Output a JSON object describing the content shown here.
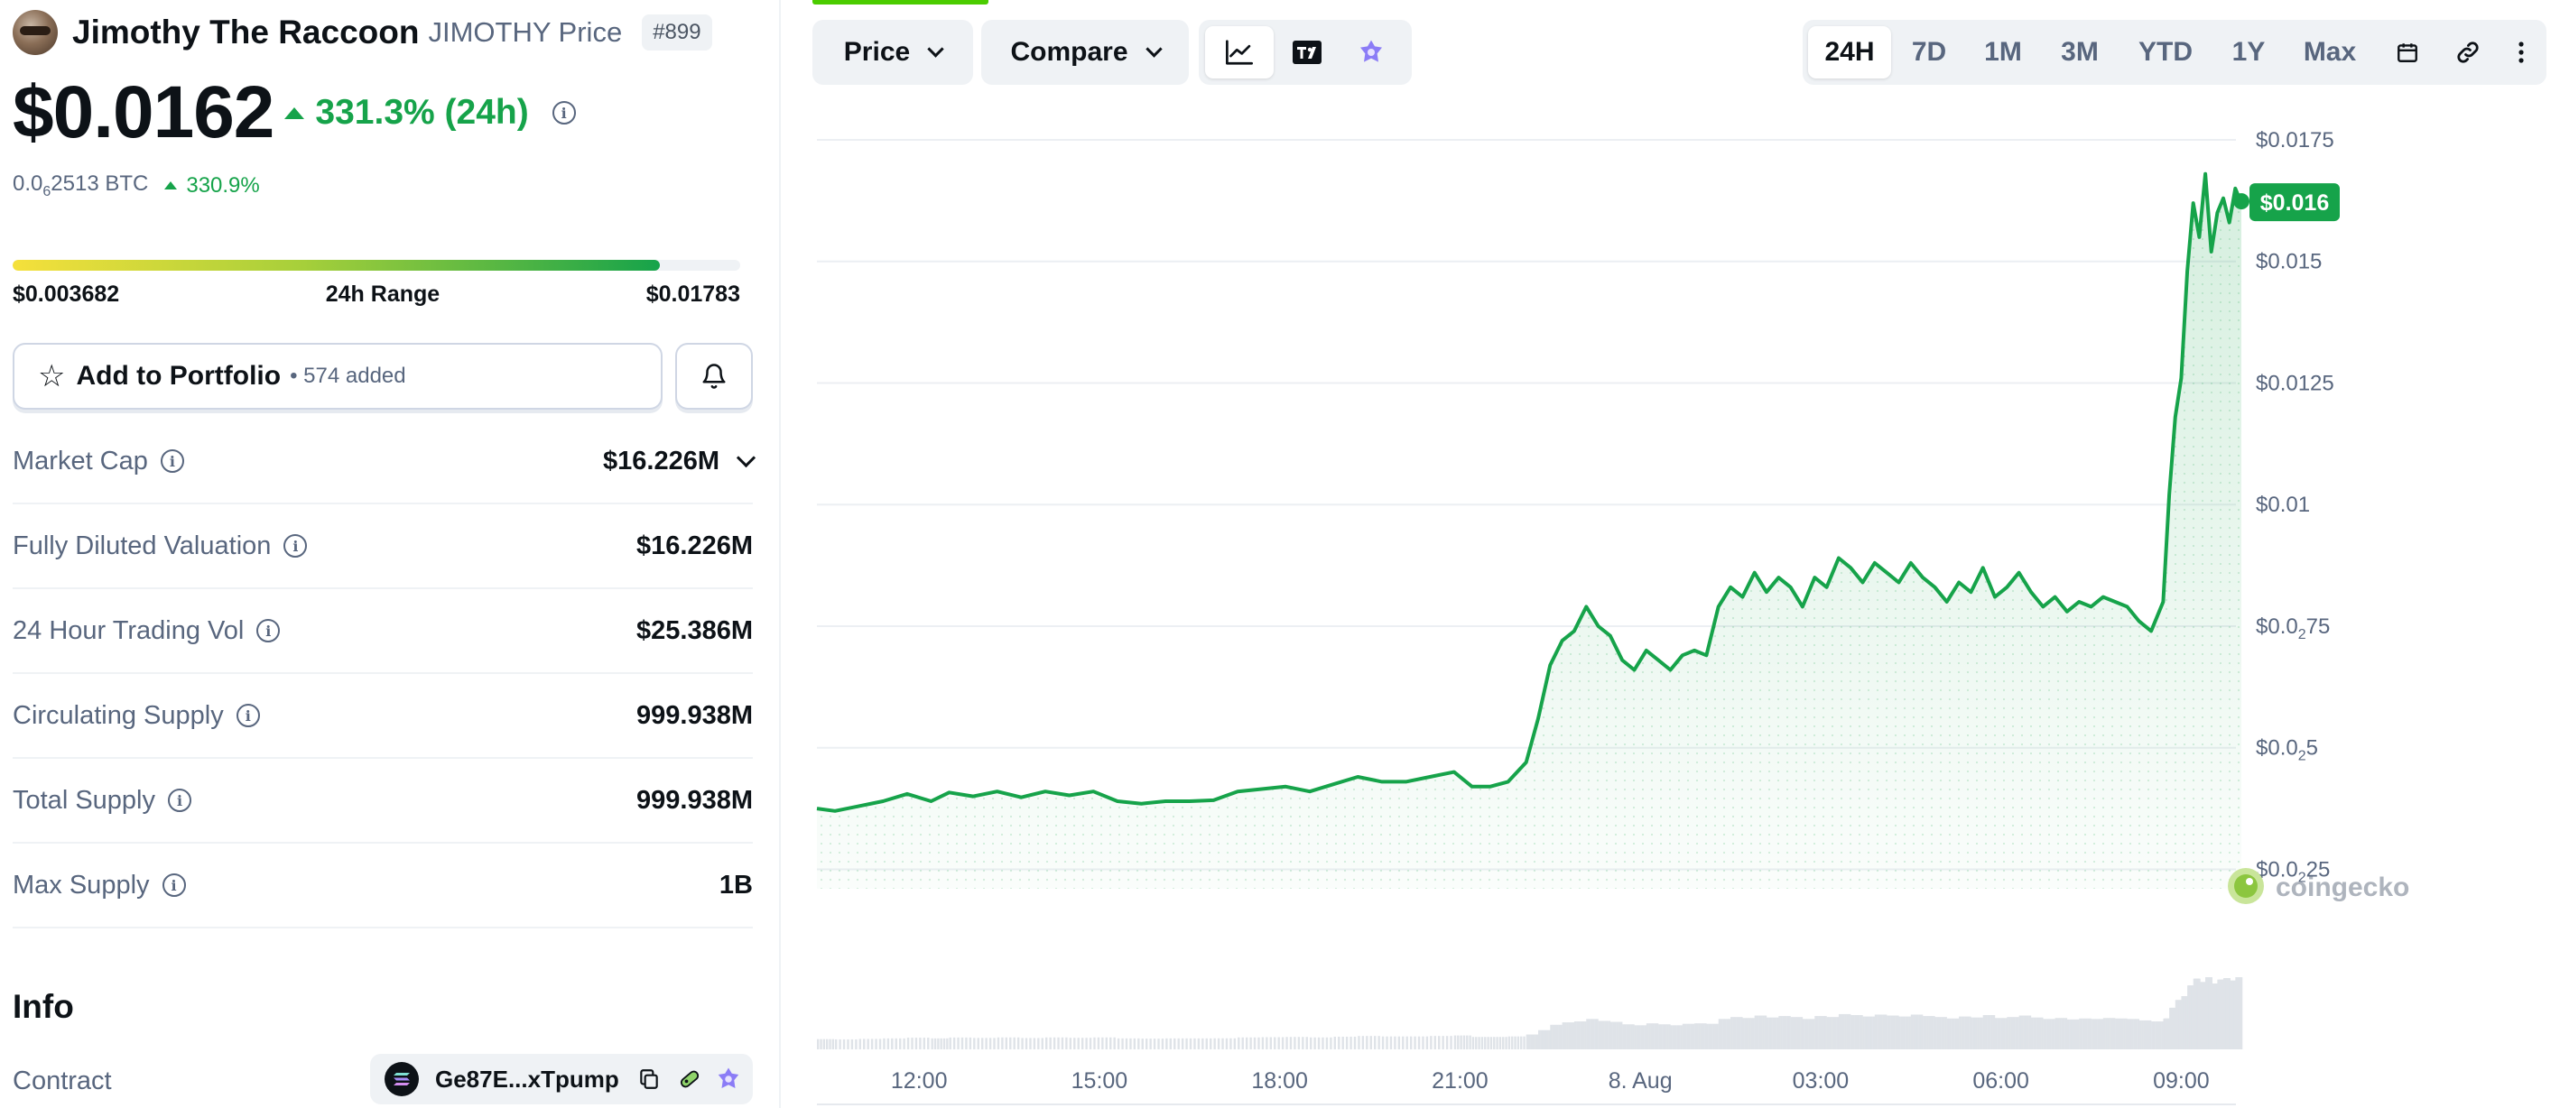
{
  "coin": {
    "name": "Jimothy The Raccoon",
    "symbol_label": "JIMOTHY Price",
    "rank": "#899",
    "price": "$0.0162",
    "change_24h": "331.3% (24h)",
    "btc_price_prefix": "0.0",
    "btc_price_sub": "6",
    "btc_price_suffix": "2513 BTC",
    "btc_change": "330.9%"
  },
  "range": {
    "low": "$0.003682",
    "label": "24h Range",
    "high": "$0.01783",
    "fill_fraction": 0.89
  },
  "portfolio": {
    "label": "Add to Portfolio",
    "count": "• 574 added"
  },
  "stats": [
    {
      "label": "Market Cap",
      "value": "$16.226M",
      "expandable": true
    },
    {
      "label": "Fully Diluted Valuation",
      "value": "$16.226M"
    },
    {
      "label": "24 Hour Trading Vol",
      "value": "$25.386M"
    },
    {
      "label": "Circulating Supply",
      "value": "999.938M"
    },
    {
      "label": "Total Supply",
      "value": "999.938M"
    },
    {
      "label": "Max Supply",
      "value": "1B"
    }
  ],
  "info": {
    "title": "Info",
    "contract_label": "Contract",
    "contract_address": "Ge87E...xTpump"
  },
  "toolbar": {
    "price_label": "Price",
    "compare_label": "Compare",
    "chart_types": [
      "line-chart-icon",
      "tradingview-icon",
      "ai-sparkle-icon"
    ],
    "ranges": [
      "24H",
      "7D",
      "1M",
      "3M",
      "YTD",
      "1Y",
      "Max"
    ],
    "active_range": "24H"
  },
  "colors": {
    "up": "#16a34a",
    "line": "#16a34a",
    "accent": "#4bcc00",
    "muted": "#58667e"
  },
  "chart_data": {
    "type": "line",
    "title": "",
    "xlabel": "",
    "ylabel": "",
    "ylim": [
      0.0021,
      0.0175
    ],
    "y_ticks": [
      {
        "value": 0.0025,
        "label_main": "$0.0",
        "label_sub": "2",
        "label_rest": "25"
      },
      {
        "value": 0.005,
        "label_main": "$0.0",
        "label_sub": "2",
        "label_rest": "5"
      },
      {
        "value": 0.0075,
        "label_main": "$0.0",
        "label_sub": "2",
        "label_rest": "75"
      },
      {
        "value": 0.01,
        "label_main": "$0.01",
        "label_sub": "",
        "label_rest": ""
      },
      {
        "value": 0.0125,
        "label_main": "$0.0125",
        "label_sub": "",
        "label_rest": ""
      },
      {
        "value": 0.015,
        "label_main": "$0.015",
        "label_sub": "",
        "label_rest": ""
      },
      {
        "value": 0.0175,
        "label_main": "$0.0175",
        "label_sub": "",
        "label_rest": ""
      }
    ],
    "x_ticks": [
      {
        "t": 12.0,
        "label": "12:00"
      },
      {
        "t": 15.0,
        "label": "15:00"
      },
      {
        "t": 18.0,
        "label": "18:00"
      },
      {
        "t": 21.0,
        "label": "21:00"
      },
      {
        "t": 24.0,
        "label": "8. Aug"
      },
      {
        "t": 27.0,
        "label": "03:00"
      },
      {
        "t": 30.0,
        "label": "06:00"
      },
      {
        "t": 33.0,
        "label": "09:00"
      }
    ],
    "x_range": [
      10.3,
      34.0
    ],
    "current_value_label": "$0.016",
    "current_value": 0.0162,
    "grid": true,
    "watermark": "coingecko",
    "series": [
      {
        "x": [
          10.3,
          10.6,
          11.0,
          11.4,
          11.8,
          12.2,
          12.5,
          12.9,
          13.3,
          13.7,
          14.1,
          14.5,
          14.9,
          15.3,
          15.7,
          16.1,
          16.5,
          16.9,
          17.3,
          17.7,
          18.1,
          18.5,
          18.9,
          19.3,
          19.7,
          20.1,
          20.5,
          20.9,
          21.2,
          21.5,
          21.8,
          22.1,
          22.3,
          22.5,
          22.7,
          22.9,
          23.1,
          23.3,
          23.5,
          23.7,
          23.9,
          24.1,
          24.3,
          24.5,
          24.7,
          24.9,
          25.1,
          25.3,
          25.5,
          25.7,
          25.9,
          26.1,
          26.3,
          26.5,
          26.7,
          26.9,
          27.1,
          27.3,
          27.5,
          27.7,
          27.9,
          28.1,
          28.3,
          28.5,
          28.7,
          28.9,
          29.1,
          29.3,
          29.5,
          29.7,
          29.9,
          30.1,
          30.3,
          30.5,
          30.7,
          30.9,
          31.1,
          31.3,
          31.5,
          31.7,
          31.9,
          32.1,
          32.3,
          32.5,
          32.7,
          32.8,
          32.9,
          33.0,
          33.1,
          33.2,
          33.3,
          33.4,
          33.5,
          33.6,
          33.7,
          33.8,
          33.9,
          34.0
        ],
        "values": [
          0.00375,
          0.0037,
          0.0038,
          0.0039,
          0.00405,
          0.0039,
          0.00408,
          0.004,
          0.0041,
          0.00398,
          0.0041,
          0.00402,
          0.0041,
          0.0039,
          0.00385,
          0.0039,
          0.0039,
          0.00392,
          0.0041,
          0.00415,
          0.0042,
          0.0041,
          0.00425,
          0.0044,
          0.0043,
          0.0043,
          0.0044,
          0.0045,
          0.0042,
          0.0042,
          0.0043,
          0.0047,
          0.0056,
          0.0067,
          0.0072,
          0.0074,
          0.0079,
          0.0075,
          0.0073,
          0.0068,
          0.0066,
          0.007,
          0.0068,
          0.0066,
          0.0069,
          0.007,
          0.0069,
          0.0079,
          0.0083,
          0.0081,
          0.0086,
          0.0082,
          0.0085,
          0.0083,
          0.0079,
          0.0085,
          0.0083,
          0.0089,
          0.0087,
          0.0084,
          0.0088,
          0.0086,
          0.0084,
          0.0088,
          0.0085,
          0.0083,
          0.008,
          0.0084,
          0.0082,
          0.0087,
          0.0081,
          0.0083,
          0.0086,
          0.0082,
          0.0079,
          0.0081,
          0.0078,
          0.008,
          0.0079,
          0.0081,
          0.008,
          0.0079,
          0.0076,
          0.0074,
          0.008,
          0.0102,
          0.0118,
          0.0126,
          0.0148,
          0.0162,
          0.0155,
          0.0168,
          0.0152,
          0.016,
          0.0163,
          0.0158,
          0.0165,
          0.0162
        ]
      }
    ]
  }
}
